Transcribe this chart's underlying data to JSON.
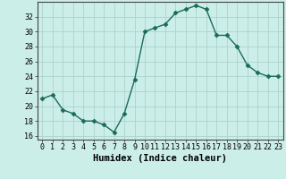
{
  "x": [
    0,
    1,
    2,
    3,
    4,
    5,
    6,
    7,
    8,
    9,
    10,
    11,
    12,
    13,
    14,
    15,
    16,
    17,
    18,
    19,
    20,
    21,
    22,
    23
  ],
  "y": [
    21.0,
    21.5,
    19.5,
    19.0,
    18.0,
    18.0,
    17.5,
    16.5,
    19.0,
    23.5,
    30.0,
    30.5,
    31.0,
    32.5,
    33.0,
    33.5,
    33.0,
    29.5,
    29.5,
    28.0,
    25.5,
    24.5,
    24.0,
    24.0
  ],
  "ylim": [
    15.5,
    34.0
  ],
  "yticks": [
    16,
    18,
    20,
    22,
    24,
    26,
    28,
    30,
    32
  ],
  "xlabel": "Humidex (Indice chaleur)",
  "line_color": "#1a6b5a",
  "marker": "D",
  "markersize": 2.5,
  "bg_color": "#cceee8",
  "grid_color": "#aad4cc",
  "axis_color": "#444444",
  "xlabel_fontsize": 7.5,
  "tick_fontsize": 6.0
}
